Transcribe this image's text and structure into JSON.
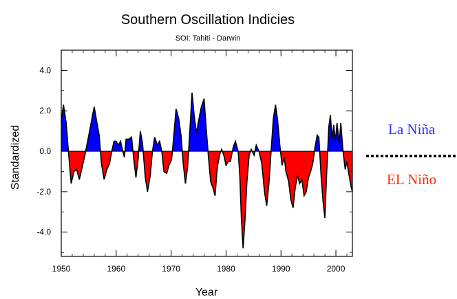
{
  "chart_data": {
    "type": "area",
    "title": "Southern Oscillation Indicies",
    "subtitle": "SOI: Tahiti - Darwin",
    "xlabel": "Year",
    "ylabel": "Standardized",
    "xlim": [
      1950,
      2003
    ],
    "ylim": [
      -5.2,
      5.0
    ],
    "xticks": [
      1950,
      1960,
      1970,
      1980,
      1990,
      2000
    ],
    "yticks": [
      4.0,
      2.0,
      0.0,
      -2.0,
      -4.0
    ],
    "ytick_labels": [
      "4.0",
      "2.0",
      "0.0",
      "-2.0",
      "-4.0"
    ],
    "grid": false,
    "baseline": 0,
    "positive_color": "#0000ff",
    "negative_color": "#ff0000",
    "line_color": "#000000",
    "series": [
      {
        "values": [
          [
            1950.0,
            1.5
          ],
          [
            1950.4,
            2.3
          ],
          [
            1950.9,
            1.4
          ],
          [
            1951.3,
            0.0
          ],
          [
            1951.8,
            -1.6
          ],
          [
            1952.3,
            -1.0
          ],
          [
            1952.8,
            -0.9
          ],
          [
            1953.3,
            -1.4
          ],
          [
            1953.8,
            -0.8
          ],
          [
            1954.3,
            -0.2
          ],
          [
            1954.8,
            0.5
          ],
          [
            1955.3,
            1.2
          ],
          [
            1955.7,
            1.8
          ],
          [
            1956.0,
            2.2
          ],
          [
            1956.5,
            1.4
          ],
          [
            1956.9,
            0.8
          ],
          [
            1957.3,
            -0.6
          ],
          [
            1957.8,
            -1.4
          ],
          [
            1958.3,
            -0.9
          ],
          [
            1958.8,
            -0.6
          ],
          [
            1959.2,
            0.0
          ],
          [
            1959.6,
            0.5
          ],
          [
            1960.0,
            0.5
          ],
          [
            1960.4,
            0.3
          ],
          [
            1960.8,
            0.5
          ],
          [
            1961.2,
            0.0
          ],
          [
            1961.5,
            -0.3
          ],
          [
            1961.8,
            0.6
          ],
          [
            1962.3,
            0.6
          ],
          [
            1962.8,
            0.7
          ],
          [
            1963.2,
            -0.4
          ],
          [
            1963.6,
            -1.3
          ],
          [
            1964.0,
            -0.4
          ],
          [
            1964.4,
            1.0
          ],
          [
            1964.8,
            0.4
          ],
          [
            1965.3,
            -1.3
          ],
          [
            1965.7,
            -2.0
          ],
          [
            1966.2,
            -1.2
          ],
          [
            1966.6,
            0.0
          ],
          [
            1967.0,
            0.7
          ],
          [
            1967.5,
            0.3
          ],
          [
            1967.9,
            0.5
          ],
          [
            1968.3,
            0.0
          ],
          [
            1968.7,
            -1.0
          ],
          [
            1969.2,
            -1.1
          ],
          [
            1969.6,
            -0.7
          ],
          [
            1970.1,
            -0.4
          ],
          [
            1970.5,
            0.8
          ],
          [
            1970.9,
            2.1
          ],
          [
            1971.4,
            1.6
          ],
          [
            1971.8,
            0.8
          ],
          [
            1972.2,
            -0.6
          ],
          [
            1972.6,
            -1.6
          ],
          [
            1973.0,
            -0.8
          ],
          [
            1973.4,
            1.0
          ],
          [
            1973.8,
            2.9
          ],
          [
            1974.2,
            1.8
          ],
          [
            1974.6,
            0.9
          ],
          [
            1975.0,
            1.5
          ],
          [
            1975.5,
            2.2
          ],
          [
            1976.0,
            2.6
          ],
          [
            1976.4,
            1.1
          ],
          [
            1976.8,
            -0.3
          ],
          [
            1977.2,
            -1.5
          ],
          [
            1977.6,
            -1.8
          ],
          [
            1978.0,
            -2.2
          ],
          [
            1978.4,
            -0.8
          ],
          [
            1978.8,
            -0.2
          ],
          [
            1979.2,
            0.1
          ],
          [
            1979.6,
            -0.2
          ],
          [
            1980.0,
            -0.7
          ],
          [
            1980.4,
            -0.5
          ],
          [
            1980.8,
            -0.5
          ],
          [
            1981.3,
            0.2
          ],
          [
            1981.7,
            0.5
          ],
          [
            1982.2,
            0.0
          ],
          [
            1982.5,
            -1.2
          ],
          [
            1982.8,
            -3.4
          ],
          [
            1983.1,
            -4.8
          ],
          [
            1983.4,
            -3.6
          ],
          [
            1983.8,
            -1.5
          ],
          [
            1984.2,
            -0.2
          ],
          [
            1984.6,
            0.1
          ],
          [
            1985.1,
            -0.2
          ],
          [
            1985.5,
            0.3
          ],
          [
            1986.0,
            0.0
          ],
          [
            1986.5,
            -0.6
          ],
          [
            1987.0,
            -2.0
          ],
          [
            1987.4,
            -2.7
          ],
          [
            1987.8,
            -1.6
          ],
          [
            1988.2,
            0.0
          ],
          [
            1988.6,
            1.6
          ],
          [
            1989.0,
            2.3
          ],
          [
            1989.4,
            1.5
          ],
          [
            1989.8,
            0.3
          ],
          [
            1990.2,
            -0.7
          ],
          [
            1990.6,
            -0.3
          ],
          [
            1990.9,
            -1.0
          ],
          [
            1991.4,
            -1.5
          ],
          [
            1991.8,
            -2.4
          ],
          [
            1992.2,
            -2.8
          ],
          [
            1992.6,
            -1.8
          ],
          [
            1993.0,
            -1.2
          ],
          [
            1993.4,
            -1.6
          ],
          [
            1993.8,
            -1.4
          ],
          [
            1994.2,
            -2.2
          ],
          [
            1994.6,
            -2.0
          ],
          [
            1995.0,
            -1.3
          ],
          [
            1995.4,
            -1.0
          ],
          [
            1995.8,
            -0.6
          ],
          [
            1996.2,
            0.2
          ],
          [
            1996.6,
            0.8
          ],
          [
            1996.9,
            0.7
          ],
          [
            1997.3,
            -1.2
          ],
          [
            1997.7,
            -2.6
          ],
          [
            1998.0,
            -3.3
          ],
          [
            1998.3,
            -1.2
          ],
          [
            1998.7,
            1.2
          ],
          [
            1999.0,
            1.8
          ],
          [
            1999.3,
            0.6
          ],
          [
            1999.6,
            1.3
          ],
          [
            1999.9,
            0.5
          ],
          [
            2000.2,
            1.4
          ],
          [
            2000.6,
            0.4
          ],
          [
            2000.9,
            1.4
          ],
          [
            2001.3,
            0.0
          ],
          [
            2001.7,
            -0.9
          ],
          [
            2002.0,
            -0.5
          ],
          [
            2002.4,
            -1.2
          ],
          [
            2002.8,
            -1.8
          ],
          [
            2003.0,
            -2.0
          ]
        ]
      }
    ]
  },
  "annotations": {
    "la_nina": "La Niña",
    "el_nino": "EL Niño",
    "la_nina_color": "#3333ff",
    "el_nino_color": "#ff2a00"
  }
}
